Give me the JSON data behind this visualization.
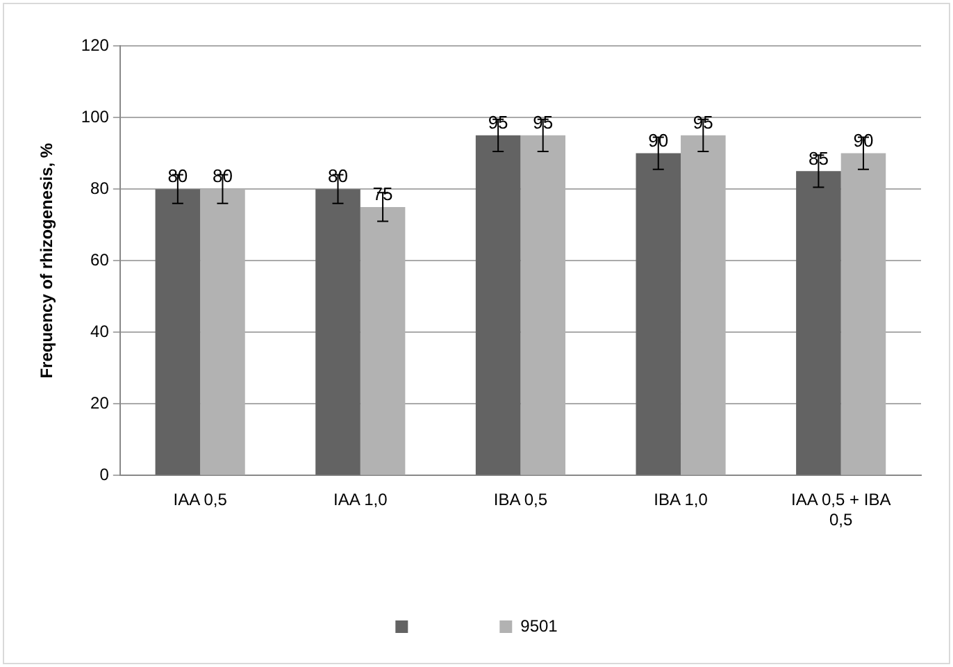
{
  "chart_data": {
    "type": "bar",
    "ylabel": "Frequency of rhizogenesis, %",
    "categories": [
      "IAA 0,5",
      "IAA 1,0",
      "IBA 0,5",
      "IBA 1,0",
      "IAA 0,5 + IBA 0,5"
    ],
    "series": [
      {
        "color": "#636363",
        "values": [
          80,
          80,
          95,
          90,
          85
        ],
        "errors": [
          4,
          4,
          4.5,
          4.5,
          4.5
        ]
      },
      {
        "name": "9501",
        "color": "#b2b2b2",
        "values": [
          80,
          75,
          95,
          95,
          90
        ],
        "errors": [
          4,
          4,
          4.5,
          4.5,
          4.5
        ]
      }
    ],
    "ylim": [
      0,
      120
    ],
    "yticks": [
      0,
      20,
      40,
      60,
      80,
      100,
      120
    ],
    "grid": "y",
    "legend": "bottom",
    "data_labels": true
  }
}
